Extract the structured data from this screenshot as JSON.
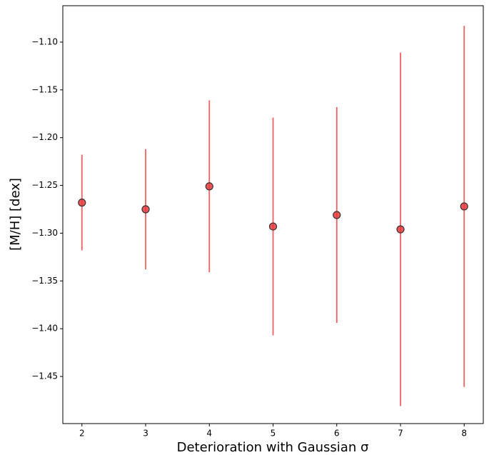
{
  "chart_data": {
    "type": "errorbar",
    "xlabel": "Deterioration with Gaussian σ",
    "ylabel": "[M/H] [dex]",
    "x": [
      2,
      3,
      4,
      5,
      6,
      7,
      8
    ],
    "values": [
      -1.268,
      -1.275,
      -1.251,
      -1.293,
      -1.281,
      -1.296,
      -1.272
    ],
    "errors": [
      0.05,
      0.063,
      0.09,
      0.114,
      0.113,
      0.185,
      0.189
    ],
    "color": "#e8383b",
    "errorbar_color": "#f06060",
    "edgecolor": "#333333",
    "xlim": [
      1.7,
      8.3
    ],
    "ylim": [
      -1.4993,
      -1.0619
    ],
    "xticks": [
      2,
      3,
      4,
      5,
      6,
      7,
      8
    ],
    "yticks": [
      {
        "value": -1.1,
        "label": "−1.10"
      },
      {
        "value": -1.15,
        "label": "−1.15"
      },
      {
        "value": -1.2,
        "label": "−1.20"
      },
      {
        "value": -1.25,
        "label": "−1.25"
      },
      {
        "value": -1.3,
        "label": "−1.30"
      },
      {
        "value": -1.35,
        "label": "−1.35"
      },
      {
        "value": -1.4,
        "label": "−1.40"
      },
      {
        "value": -1.45,
        "label": "−1.45"
      }
    ]
  }
}
